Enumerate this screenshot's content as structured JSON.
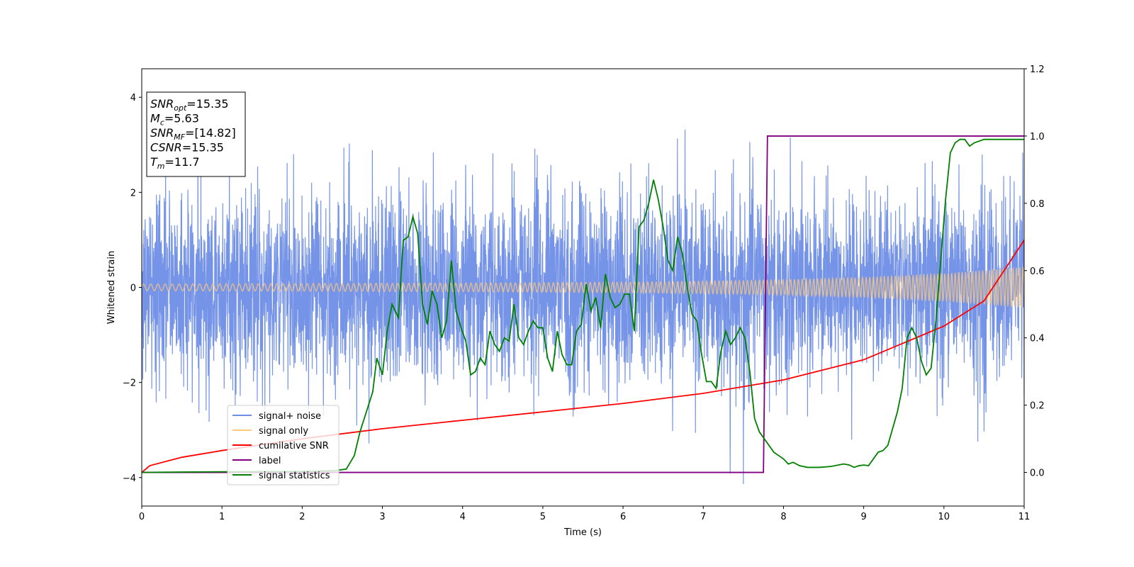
{
  "chart_data": {
    "type": "line",
    "title": "",
    "xlabel": "Time (s)",
    "ylabel": "Whitened strain",
    "xlim": [
      0,
      11
    ],
    "ylim_left": [
      -4.6,
      4.6
    ],
    "ylim_right": [
      -0.1,
      1.2
    ],
    "x_ticks": [
      "0",
      "1",
      "2",
      "3",
      "4",
      "5",
      "6",
      "7",
      "8",
      "9",
      "10",
      "11"
    ],
    "y_ticks_left": [
      "−4",
      "−2",
      "0",
      "2",
      "4"
    ],
    "y_ticks_left_values": [
      -4,
      -2,
      0,
      2,
      4
    ],
    "y_ticks_right": [
      "0.0",
      "0.2",
      "0.4",
      "0.6",
      "0.8",
      "1.0",
      "1.2"
    ],
    "y_ticks_right_values": [
      0.0,
      0.2,
      0.4,
      0.6,
      0.8,
      1.0,
      1.2
    ],
    "grid": false,
    "legend_position": "lower-left",
    "info_box": {
      "lines": [
        {
          "main": "SNR",
          "sub": "opt",
          "rest": "=15.35"
        },
        {
          "main": "M",
          "sub": "c",
          "rest": "=5.63"
        },
        {
          "main": "SNR",
          "sub": "MF",
          "rest": "=[14.82]"
        },
        {
          "main": "CSNR",
          "sub": "",
          "rest": "=15.35"
        },
        {
          "main": "T",
          "sub": "m",
          "rest": "=11.7"
        }
      ]
    },
    "series": [
      {
        "name": "signal+ noise",
        "color": "#6f8ee6",
        "axis": "left",
        "kind": "noise",
        "noise_sigma": 1.0,
        "noise_min": -4.15,
        "noise_max": 4.15
      },
      {
        "name": "signal only",
        "color": "#ffc87a",
        "axis": "left",
        "kind": "chirp",
        "amplitude_x": [
          0,
          2,
          4,
          6,
          7,
          8,
          9,
          10,
          11
        ],
        "amplitude_y": [
          0.07,
          0.08,
          0.09,
          0.11,
          0.13,
          0.16,
          0.21,
          0.29,
          0.43
        ]
      },
      {
        "name": "cumilative SNR",
        "color": "#ff0000",
        "axis": "right",
        "x": [
          0,
          0.1,
          0.5,
          1,
          2,
          3,
          4,
          5,
          6,
          7,
          8,
          9,
          10,
          10.5,
          11
        ],
        "y": [
          0.0,
          0.02,
          0.045,
          0.065,
          0.1,
          0.13,
          0.155,
          0.18,
          0.205,
          0.235,
          0.275,
          0.335,
          0.435,
          0.51,
          0.69
        ]
      },
      {
        "name": "label",
        "color": "#800080",
        "axis": "right",
        "x": [
          0,
          7.75,
          7.8,
          11
        ],
        "y": [
          0.0,
          0.0,
          1.0,
          1.0
        ]
      },
      {
        "name": "signal statistics",
        "color": "#008000",
        "axis": "right",
        "x": [
          0,
          1.0,
          2.0,
          2.4,
          2.55,
          2.65,
          2.72,
          2.8,
          2.88,
          2.93,
          3.0,
          3.06,
          3.12,
          3.2,
          3.26,
          3.32,
          3.38,
          3.44,
          3.5,
          3.56,
          3.62,
          3.68,
          3.74,
          3.8,
          3.86,
          3.92,
          3.98,
          4.04,
          4.1,
          4.16,
          4.22,
          4.28,
          4.34,
          4.4,
          4.46,
          4.52,
          4.58,
          4.64,
          4.7,
          4.76,
          4.82,
          4.88,
          4.94,
          5.0,
          5.06,
          5.12,
          5.18,
          5.24,
          5.3,
          5.36,
          5.42,
          5.48,
          5.54,
          5.6,
          5.66,
          5.72,
          5.78,
          5.84,
          5.9,
          5.96,
          6.02,
          6.08,
          6.14,
          6.2,
          6.26,
          6.32,
          6.38,
          6.44,
          6.5,
          6.56,
          6.62,
          6.68,
          6.74,
          6.8,
          6.86,
          6.92,
          6.98,
          7.04,
          7.1,
          7.16,
          7.22,
          7.28,
          7.34,
          7.4,
          7.46,
          7.52,
          7.58,
          7.64,
          7.7,
          7.76,
          7.82,
          7.88,
          7.94,
          8.0,
          8.06,
          8.12,
          8.2,
          8.3,
          8.45,
          8.6,
          8.75,
          8.82,
          8.88,
          8.94,
          9.0,
          9.06,
          9.12,
          9.18,
          9.24,
          9.3,
          9.36,
          9.42,
          9.48,
          9.54,
          9.6,
          9.66,
          9.72,
          9.78,
          9.84,
          9.9,
          9.96,
          10.02,
          10.08,
          10.14,
          10.2,
          10.26,
          10.32,
          10.38,
          10.44,
          10.5,
          10.56,
          10.62,
          10.68,
          10.74,
          10.8,
          10.86,
          10.92,
          10.98,
          11.0
        ],
        "y": [
          0.0,
          0.002,
          0.003,
          0.005,
          0.01,
          0.05,
          0.12,
          0.18,
          0.24,
          0.34,
          0.29,
          0.42,
          0.5,
          0.46,
          0.69,
          0.7,
          0.76,
          0.71,
          0.5,
          0.44,
          0.54,
          0.5,
          0.4,
          0.45,
          0.63,
          0.48,
          0.43,
          0.39,
          0.29,
          0.3,
          0.34,
          0.32,
          0.42,
          0.38,
          0.36,
          0.4,
          0.39,
          0.5,
          0.4,
          0.38,
          0.42,
          0.45,
          0.43,
          0.43,
          0.34,
          0.3,
          0.42,
          0.35,
          0.32,
          0.32,
          0.42,
          0.44,
          0.56,
          0.48,
          0.52,
          0.43,
          0.59,
          0.52,
          0.49,
          0.5,
          0.53,
          0.53,
          0.42,
          0.73,
          0.75,
          0.8,
          0.87,
          0.81,
          0.73,
          0.63,
          0.6,
          0.7,
          0.65,
          0.55,
          0.47,
          0.45,
          0.35,
          0.27,
          0.27,
          0.25,
          0.36,
          0.42,
          0.38,
          0.4,
          0.43,
          0.4,
          0.3,
          0.16,
          0.12,
          0.1,
          0.08,
          0.06,
          0.05,
          0.04,
          0.025,
          0.03,
          0.02,
          0.015,
          0.015,
          0.018,
          0.025,
          0.022,
          0.015,
          0.02,
          0.022,
          0.02,
          0.04,
          0.06,
          0.065,
          0.08,
          0.13,
          0.18,
          0.25,
          0.4,
          0.43,
          0.4,
          0.33,
          0.29,
          0.31,
          0.45,
          0.63,
          0.81,
          0.95,
          0.98,
          0.99,
          0.99,
          0.97,
          0.98,
          0.985,
          0.99,
          0.99,
          0.99,
          0.99,
          0.99,
          0.99,
          0.99,
          0.99,
          0.99,
          0.99
        ]
      }
    ]
  }
}
